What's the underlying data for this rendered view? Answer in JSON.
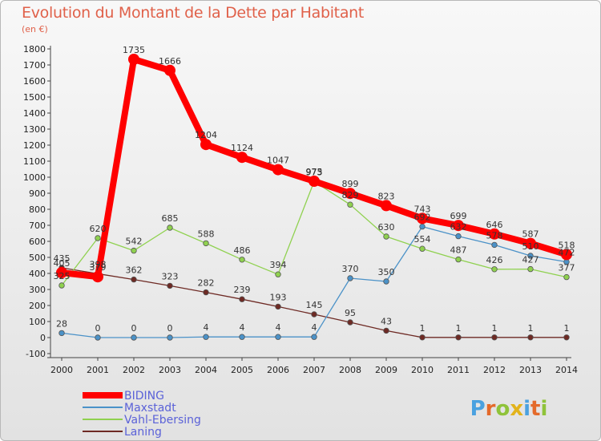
{
  "title": "Evolution du Montant de la Dette par Habitant",
  "subtitle": "(en €)",
  "logo_text": "Proxiti",
  "chart_data": {
    "type": "line",
    "title": "Evolution du Montant de la Dette par Habitant",
    "ylabel": "(en €)",
    "xlabel": "",
    "x": [
      "2000",
      "2001",
      "2002",
      "2003",
      "2004",
      "2005",
      "2006",
      "2007",
      "2008",
      "2009",
      "2010",
      "2011",
      "2012",
      "2013",
      "2014"
    ],
    "ylim": [
      -100,
      1800
    ],
    "yticks": [
      -100,
      0,
      100,
      200,
      300,
      400,
      500,
      600,
      700,
      800,
      900,
      1000,
      1100,
      1200,
      1300,
      1400,
      1500,
      1600,
      1700,
      1800
    ],
    "grid": false,
    "legend_position": "bottom-left",
    "series": [
      {
        "name": "BIDING",
        "color": "#ff0000",
        "values": [
          405,
          379,
          1735,
          1666,
          1204,
          1124,
          1047,
          975,
          899,
          823,
          743,
          699,
          646,
          587,
          518
        ]
      },
      {
        "name": "Maxstadt",
        "color": "#4b92c8",
        "values": [
          28,
          0,
          0,
          0,
          4,
          4,
          4,
          4,
          370,
          350,
          692,
          632,
          578,
          510,
          472
        ]
      },
      {
        "name": "Vahl-Ebersing",
        "color": "#8fd14f",
        "values": [
          325,
          620,
          542,
          685,
          588,
          486,
          394,
          973,
          829,
          630,
          554,
          487,
          426,
          427,
          377
        ]
      },
      {
        "name": "Laning",
        "color": "#6e2a24",
        "values": [
          435,
          398,
          362,
          323,
          282,
          239,
          193,
          145,
          95,
          43,
          1,
          1,
          1,
          1,
          1
        ]
      }
    ]
  }
}
